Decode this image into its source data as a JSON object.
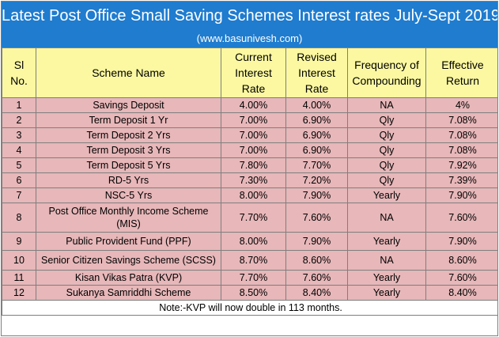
{
  "header": {
    "title": "Latest Post Office Small Saving Schemes Interest rates July-Sept 2019",
    "website": "(www.basunivesh.com)"
  },
  "columns": {
    "sl_no": "Sl No.",
    "scheme_name": "Scheme Name",
    "current_rate": "Current Interest Rate",
    "revised_rate": "Revised Interest Rate",
    "frequency": "Frequency of Compounding",
    "effective_return": "Effective Return"
  },
  "rows": [
    {
      "sl": "1",
      "scheme": "Savings Deposit",
      "current": "4.00%",
      "revised": "4.00%",
      "frequency": "NA",
      "effective": "4%"
    },
    {
      "sl": "2",
      "scheme": "Term Deposit 1 Yr",
      "current": "7.00%",
      "revised": "6.90%",
      "frequency": "Qly",
      "effective": "7.08%"
    },
    {
      "sl": "3",
      "scheme": "Term Deposit 2 Yrs",
      "current": "7.00%",
      "revised": "6.90%",
      "frequency": "Qly",
      "effective": "7.08%"
    },
    {
      "sl": "4",
      "scheme": "Term Deposit 3 Yrs",
      "current": "7.00%",
      "revised": "6.90%",
      "frequency": "Qly",
      "effective": "7.08%"
    },
    {
      "sl": "5",
      "scheme": "Term Deposit 5 Yrs",
      "current": "7.80%",
      "revised": "7.70%",
      "frequency": "Qly",
      "effective": "7.92%"
    },
    {
      "sl": "6",
      "scheme": "RD-5 Yrs",
      "current": "7.30%",
      "revised": "7.20%",
      "frequency": "Qly",
      "effective": "7.39%"
    },
    {
      "sl": "7",
      "scheme": "NSC-5 Yrs",
      "current": "8.00%",
      "revised": "7.90%",
      "frequency": "Yearly",
      "effective": "7.90%"
    },
    {
      "sl": "8",
      "scheme": "Post Office Monthly Income Scheme (MIS)",
      "current": "7.70%",
      "revised": "7.60%",
      "frequency": "NA",
      "effective": "7.60%"
    },
    {
      "sl": "9",
      "scheme": "Public Provident Fund (PPF)",
      "current": "8.00%",
      "revised": "7.90%",
      "frequency": "Yearly",
      "effective": "7.90%"
    },
    {
      "sl": "10",
      "scheme": "Senior Citizen Savings Scheme (SCSS)",
      "current": "8.70%",
      "revised": "8.60%",
      "frequency": "NA",
      "effective": "8.60%"
    },
    {
      "sl": "11",
      "scheme": "Kisan Vikas Patra (KVP)",
      "current": "7.70%",
      "revised": "7.60%",
      "frequency": "Yearly",
      "effective": "7.60%"
    },
    {
      "sl": "12",
      "scheme": "Sukanya Samriddhi Scheme",
      "current": "8.50%",
      "revised": "8.40%",
      "frequency": "Yearly",
      "effective": "8.40%"
    }
  ],
  "note": "Note:-KVP will now double in 113 months.",
  "colors": {
    "title_band": "#1f7ccf",
    "header_fill": "#fbf8a1",
    "row_fill": "#e7b7b9"
  }
}
